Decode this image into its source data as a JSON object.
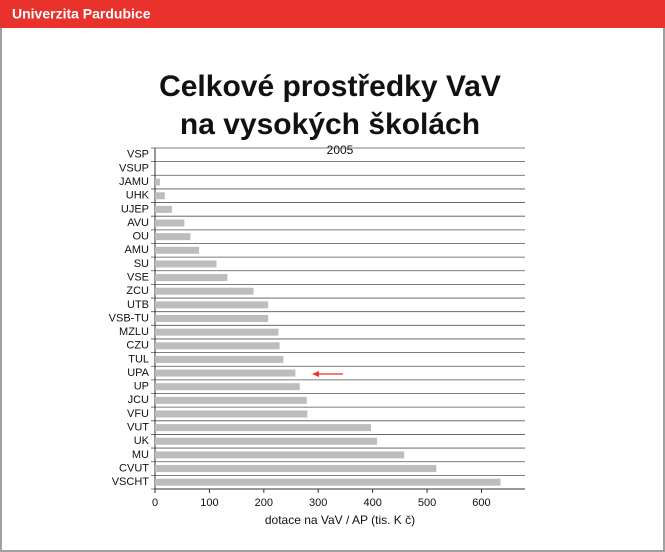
{
  "header": {
    "title": "Univerzita Pardubice"
  },
  "chart_data": {
    "type": "bar",
    "orientation": "horizontal",
    "title": [
      "Celkové prostředky VaV",
      "na vysokých školách"
    ],
    "subtitle": "2005",
    "x_label": "dotace na VaV / AP (tis. K č)",
    "categories": [
      "VSP",
      "VSUP",
      "JAMU",
      "UHK",
      "UJEP",
      "AVU",
      "OU",
      "AMU",
      "SU",
      "VSE",
      "ZCU",
      "UTB",
      "VSB-TU",
      "MZLU",
      "CZU",
      "TUL",
      "UPA",
      "UP",
      "JCU",
      "VFU",
      "VUT",
      "UK",
      "MU",
      "CVUT",
      "VSCHT"
    ],
    "values": [
      0,
      0,
      9,
      18,
      31,
      54,
      65,
      81,
      113,
      133,
      181,
      208,
      208,
      227,
      229,
      236,
      258,
      266,
      279,
      280,
      397,
      408,
      458,
      517,
      635
    ],
    "color": "#bdbdbd",
    "xlim": [
      0,
      680
    ],
    "xticks": [
      0,
      100,
      200,
      300,
      400,
      500,
      600
    ]
  }
}
